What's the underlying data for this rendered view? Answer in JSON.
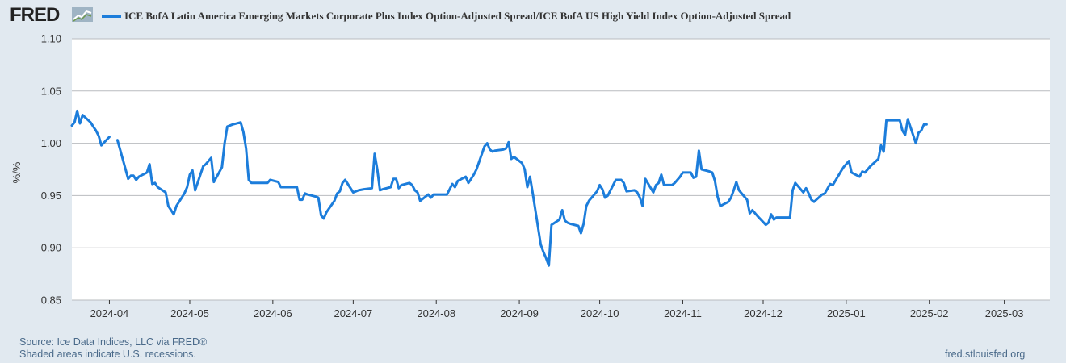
{
  "header": {
    "logo_text": "FRED",
    "logo_mark": "fred-chart-mark-icon"
  },
  "colors": {
    "background": "#e1e9f0",
    "plot_background": "#ffffff",
    "series_line": "#1c7ddb",
    "grid": "#b9bcbf"
  },
  "chart_data": {
    "type": "line",
    "title": "",
    "xlabel": "",
    "ylabel": "%/%",
    "ylim": [
      0.85,
      1.1
    ],
    "yticks": [
      0.85,
      0.9,
      0.95,
      1.0,
      1.05,
      1.1
    ],
    "ytick_labels": [
      "0.85",
      "0.90",
      "0.95",
      "1.00",
      "1.05",
      "1.10"
    ],
    "xlim": [
      "2024-03-18",
      "2025-03-18"
    ],
    "xticks": [
      "2024-04-01",
      "2024-05-01",
      "2024-06-01",
      "2024-07-01",
      "2024-08-01",
      "2024-09-01",
      "2024-10-01",
      "2024-11-01",
      "2024-12-01",
      "2025-01-01",
      "2025-02-01",
      "2025-03-01"
    ],
    "xtick_labels": [
      "2024-04",
      "2024-05",
      "2024-06",
      "2024-07",
      "2024-08",
      "2024-09",
      "2024-10",
      "2024-11",
      "2024-12",
      "2025-01",
      "2025-02",
      "2025-03"
    ],
    "grid": "horizontal",
    "legend_position": "top",
    "series": [
      {
        "name": "ICE BofA Latin America Emerging Markets Corporate Plus Index Option-Adjusted Spread/ICE BofA US High Yield Index Option-Adjusted Spread",
        "segments": [
          [
            [
              "2024-03-18",
              1.017
            ],
            [
              "2024-03-19",
              1.02
            ],
            [
              "2024-03-20",
              1.031
            ],
            [
              "2024-03-21",
              1.019
            ],
            [
              "2024-03-22",
              1.027
            ],
            [
              "2024-03-25",
              1.02
            ],
            [
              "2024-03-26",
              1.016
            ],
            [
              "2024-03-27",
              1.012
            ],
            [
              "2024-03-28",
              1.007
            ],
            [
              "2024-03-29",
              0.998
            ],
            [
              "2024-04-01",
              1.006
            ]
          ],
          [
            [
              "2024-04-04",
              1.003
            ],
            [
              "2024-04-05",
              0.994
            ],
            [
              "2024-04-08",
              0.966
            ],
            [
              "2024-04-09",
              0.969
            ],
            [
              "2024-04-10",
              0.969
            ],
            [
              "2024-04-11",
              0.965
            ],
            [
              "2024-04-12",
              0.968
            ],
            [
              "2024-04-15",
              0.972
            ],
            [
              "2024-04-16",
              0.98
            ],
            [
              "2024-04-17",
              0.961
            ],
            [
              "2024-04-18",
              0.962
            ],
            [
              "2024-04-19",
              0.958
            ],
            [
              "2024-04-22",
              0.953
            ],
            [
              "2024-04-23",
              0.94
            ],
            [
              "2024-04-24",
              0.936
            ],
            [
              "2024-04-25",
              0.932
            ],
            [
              "2024-04-26",
              0.94
            ],
            [
              "2024-04-29",
              0.952
            ],
            [
              "2024-04-30",
              0.958
            ],
            [
              "2024-05-01",
              0.97
            ],
            [
              "2024-05-02",
              0.974
            ],
            [
              "2024-05-03",
              0.955
            ],
            [
              "2024-05-06",
              0.978
            ],
            [
              "2024-05-07",
              0.98
            ],
            [
              "2024-05-09",
              0.986
            ],
            [
              "2024-05-10",
              0.963
            ],
            [
              "2024-05-13",
              0.977
            ],
            [
              "2024-05-14",
              1.0
            ],
            [
              "2024-05-15",
              1.016
            ],
            [
              "2024-05-17",
              1.018
            ],
            [
              "2024-05-20",
              1.02
            ],
            [
              "2024-05-21",
              1.011
            ],
            [
              "2024-05-22",
              0.995
            ],
            [
              "2024-05-23",
              0.965
            ],
            [
              "2024-05-24",
              0.962
            ],
            [
              "2024-05-28",
              0.962
            ],
            [
              "2024-05-29",
              0.962
            ],
            [
              "2024-05-30",
              0.962
            ],
            [
              "2024-05-31",
              0.965
            ],
            [
              "2024-06-03",
              0.963
            ],
            [
              "2024-06-04",
              0.958
            ],
            [
              "2024-06-05",
              0.958
            ],
            [
              "2024-06-06",
              0.958
            ],
            [
              "2024-06-07",
              0.958
            ],
            [
              "2024-06-10",
              0.958
            ],
            [
              "2024-06-11",
              0.946
            ],
            [
              "2024-06-12",
              0.946
            ],
            [
              "2024-06-13",
              0.952
            ],
            [
              "2024-06-14",
              0.951
            ],
            [
              "2024-06-17",
              0.949
            ],
            [
              "2024-06-18",
              0.948
            ],
            [
              "2024-06-19",
              0.931
            ],
            [
              "2024-06-20",
              0.928
            ],
            [
              "2024-06-21",
              0.934
            ],
            [
              "2024-06-24",
              0.945
            ],
            [
              "2024-06-25",
              0.952
            ],
            [
              "2024-06-26",
              0.954
            ],
            [
              "2024-06-27",
              0.962
            ],
            [
              "2024-06-28",
              0.965
            ],
            [
              "2024-07-01",
              0.953
            ],
            [
              "2024-07-02",
              0.954
            ],
            [
              "2024-07-03",
              0.955
            ],
            [
              "2024-07-05",
              0.956
            ],
            [
              "2024-07-08",
              0.957
            ],
            [
              "2024-07-09",
              0.99
            ],
            [
              "2024-07-10",
              0.975
            ],
            [
              "2024-07-11",
              0.955
            ],
            [
              "2024-07-12",
              0.956
            ],
            [
              "2024-07-15",
              0.958
            ],
            [
              "2024-07-16",
              0.966
            ],
            [
              "2024-07-17",
              0.966
            ],
            [
              "2024-07-18",
              0.957
            ],
            [
              "2024-07-19",
              0.96
            ],
            [
              "2024-07-22",
              0.962
            ],
            [
              "2024-07-23",
              0.96
            ],
            [
              "2024-07-24",
              0.955
            ],
            [
              "2024-07-25",
              0.953
            ],
            [
              "2024-07-26",
              0.945
            ],
            [
              "2024-07-29",
              0.951
            ],
            [
              "2024-07-30",
              0.948
            ],
            [
              "2024-07-31",
              0.951
            ],
            [
              "2024-08-01",
              0.951
            ],
            [
              "2024-08-02",
              0.951
            ],
            [
              "2024-08-05",
              0.951
            ],
            [
              "2024-08-06",
              0.956
            ],
            [
              "2024-08-07",
              0.961
            ],
            [
              "2024-08-08",
              0.958
            ],
            [
              "2024-08-09",
              0.964
            ],
            [
              "2024-08-12",
              0.968
            ],
            [
              "2024-08-13",
              0.962
            ],
            [
              "2024-08-14",
              0.966
            ],
            [
              "2024-08-15",
              0.97
            ],
            [
              "2024-08-16",
              0.975
            ],
            [
              "2024-08-19",
              0.997
            ],
            [
              "2024-08-20",
              1.0
            ],
            [
              "2024-08-21",
              0.994
            ],
            [
              "2024-08-22",
              0.992
            ],
            [
              "2024-08-23",
              0.993
            ],
            [
              "2024-08-26",
              0.994
            ],
            [
              "2024-08-27",
              0.995
            ],
            [
              "2024-08-28",
              1.001
            ],
            [
              "2024-08-29",
              0.985
            ],
            [
              "2024-08-30",
              0.987
            ],
            [
              "2024-09-02",
              0.981
            ],
            [
              "2024-09-03",
              0.975
            ],
            [
              "2024-09-04",
              0.958
            ],
            [
              "2024-09-05",
              0.968
            ],
            [
              "2024-09-06",
              0.952
            ],
            [
              "2024-09-09",
              0.903
            ],
            [
              "2024-09-10",
              0.896
            ],
            [
              "2024-09-11",
              0.89
            ],
            [
              "2024-09-12",
              0.883
            ],
            [
              "2024-09-13",
              0.922
            ],
            [
              "2024-09-16",
              0.927
            ],
            [
              "2024-09-17",
              0.936
            ],
            [
              "2024-09-18",
              0.926
            ],
            [
              "2024-09-19",
              0.924
            ],
            [
              "2024-09-20",
              0.923
            ],
            [
              "2024-09-23",
              0.921
            ],
            [
              "2024-09-24",
              0.914
            ],
            [
              "2024-09-25",
              0.923
            ],
            [
              "2024-09-26",
              0.94
            ],
            [
              "2024-09-27",
              0.945
            ],
            [
              "2024-09-30",
              0.954
            ],
            [
              "2024-10-01",
              0.96
            ],
            [
              "2024-10-02",
              0.956
            ],
            [
              "2024-10-03",
              0.948
            ],
            [
              "2024-10-04",
              0.95
            ],
            [
              "2024-10-07",
              0.965
            ],
            [
              "2024-10-08",
              0.965
            ],
            [
              "2024-10-09",
              0.965
            ],
            [
              "2024-10-10",
              0.962
            ],
            [
              "2024-10-11",
              0.954
            ],
            [
              "2024-10-14",
              0.955
            ],
            [
              "2024-10-15",
              0.953
            ],
            [
              "2024-10-16",
              0.948
            ],
            [
              "2024-10-17",
              0.94
            ],
            [
              "2024-10-18",
              0.966
            ],
            [
              "2024-10-21",
              0.953
            ],
            [
              "2024-10-22",
              0.96
            ],
            [
              "2024-10-23",
              0.962
            ],
            [
              "2024-10-24",
              0.97
            ],
            [
              "2024-10-25",
              0.96
            ],
            [
              "2024-10-28",
              0.96
            ],
            [
              "2024-10-29",
              0.962
            ],
            [
              "2024-10-30",
              0.965
            ],
            [
              "2024-10-31",
              0.968
            ],
            [
              "2024-11-01",
              0.972
            ],
            [
              "2024-11-04",
              0.972
            ],
            [
              "2024-11-05",
              0.967
            ],
            [
              "2024-11-06",
              0.968
            ],
            [
              "2024-11-07",
              0.993
            ],
            [
              "2024-11-08",
              0.975
            ],
            [
              "2024-11-11",
              0.973
            ],
            [
              "2024-11-12",
              0.972
            ],
            [
              "2024-11-13",
              0.964
            ],
            [
              "2024-11-14",
              0.949
            ],
            [
              "2024-11-15",
              0.94
            ],
            [
              "2024-11-18",
              0.944
            ],
            [
              "2024-11-19",
              0.948
            ],
            [
              "2024-11-20",
              0.955
            ],
            [
              "2024-11-21",
              0.963
            ],
            [
              "2024-11-22",
              0.955
            ],
            [
              "2024-11-25",
              0.946
            ],
            [
              "2024-11-26",
              0.933
            ],
            [
              "2024-11-27",
              0.936
            ],
            [
              "2024-11-29",
              0.93
            ],
            [
              "2024-12-02",
              0.922
            ],
            [
              "2024-12-03",
              0.924
            ],
            [
              "2024-12-04",
              0.932
            ],
            [
              "2024-12-05",
              0.927
            ],
            [
              "2024-12-06",
              0.929
            ],
            [
              "2024-12-09",
              0.929
            ],
            [
              "2024-12-10",
              0.929
            ],
            [
              "2024-12-11",
              0.929
            ],
            [
              "2024-12-12",
              0.955
            ],
            [
              "2024-12-13",
              0.962
            ],
            [
              "2024-12-16",
              0.953
            ],
            [
              "2024-12-17",
              0.957
            ],
            [
              "2024-12-18",
              0.952
            ],
            [
              "2024-12-19",
              0.946
            ],
            [
              "2024-12-20",
              0.944
            ],
            [
              "2024-12-23",
              0.951
            ],
            [
              "2024-12-24",
              0.952
            ],
            [
              "2024-12-26",
              0.961
            ],
            [
              "2024-12-27",
              0.96
            ],
            [
              "2024-12-30",
              0.973
            ],
            [
              "2024-12-31",
              0.977
            ],
            [
              "2025-01-02",
              0.983
            ],
            [
              "2025-01-03",
              0.972
            ],
            [
              "2025-01-06",
              0.968
            ],
            [
              "2025-01-07",
              0.973
            ],
            [
              "2025-01-08",
              0.972
            ],
            [
              "2025-01-09",
              0.975
            ],
            [
              "2025-01-10",
              0.978
            ],
            [
              "2025-01-13",
              0.985
            ],
            [
              "2025-01-14",
              0.998
            ],
            [
              "2025-01-15",
              0.992
            ],
            [
              "2025-01-16",
              1.022
            ],
            [
              "2025-01-17",
              1.022
            ],
            [
              "2025-01-21",
              1.022
            ],
            [
              "2025-01-22",
              1.012
            ],
            [
              "2025-01-23",
              1.008
            ],
            [
              "2025-01-24",
              1.023
            ],
            [
              "2025-01-27",
              1.0
            ],
            [
              "2025-01-28",
              1.01
            ],
            [
              "2025-01-29",
              1.012
            ],
            [
              "2025-01-30",
              1.018
            ],
            [
              "2025-01-31",
              1.018
            ]
          ]
        ]
      }
    ]
  },
  "legend": {
    "label": "ICE BofA Latin America Emerging Markets Corporate Plus Index Option-Adjusted Spread/ICE BofA US High Yield Index Option-Adjusted Spread"
  },
  "footer": {
    "source": "Source: Ice Data Indices, LLC via FRED®",
    "note": "Shaded areas indicate U.S. recessions.",
    "url": "fred.stlouisfed.org"
  }
}
